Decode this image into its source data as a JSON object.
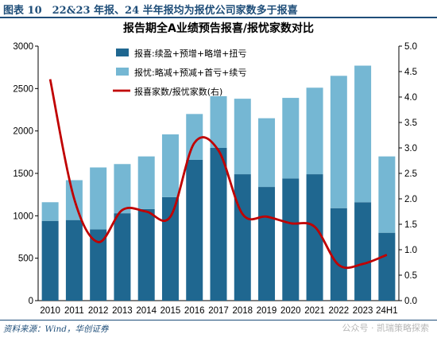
{
  "figure_label": "图表 10　22&23 年报、24 半年报均为报优公司家数多于报喜",
  "source_text": "资料来源：Wind，华创证券",
  "watermark_text": "公众号 · 凯瑞策略探索",
  "colors": {
    "dark_bar": "#1f6790",
    "light_bar": "#75b7d3",
    "line": "#c00000",
    "rule": "#1f4e79",
    "axis_text": "#000000"
  },
  "chart_data": {
    "type": "bar",
    "stacked": true,
    "title": "报告期全A业绩预告报喜/报忧家数对比",
    "categories": [
      "2010",
      "2011",
      "2012",
      "2013",
      "2014",
      "2015",
      "2016",
      "2017",
      "2018",
      "2019",
      "2020",
      "2021",
      "2022",
      "2023",
      "24H1"
    ],
    "series": [
      {
        "name": "报喜:续盈+预增+略增+扭亏",
        "kind": "bar",
        "values": [
          940,
          950,
          840,
          1030,
          1080,
          1220,
          1660,
          1800,
          1490,
          1340,
          1440,
          1490,
          1090,
          1160,
          800
        ]
      },
      {
        "name": "报忧:略减+预减+首亏+续亏",
        "kind": "bar",
        "values": [
          220,
          470,
          730,
          580,
          620,
          740,
          540,
          610,
          890,
          810,
          950,
          1020,
          1560,
          1610,
          900
        ]
      },
      {
        "name": "报喜家数/报忧家数(右)",
        "kind": "line",
        "axis": "right",
        "values": [
          4.35,
          2.0,
          1.15,
          1.78,
          1.75,
          1.65,
          3.1,
          2.95,
          1.7,
          1.65,
          1.52,
          1.45,
          0.7,
          0.72,
          0.9
        ]
      }
    ],
    "ylim": [
      0,
      3000
    ],
    "yticks": [
      0,
      500,
      1000,
      1500,
      2000,
      2500,
      3000
    ],
    "y2lim": [
      0,
      5.0
    ],
    "y2ticks": [
      "0.0",
      "0.5",
      "1.0",
      "1.5",
      "2.0",
      "2.5",
      "3.0",
      "3.5",
      "4.0",
      "4.5",
      "5.0"
    ],
    "grid": false,
    "legend_position": "top-left"
  }
}
